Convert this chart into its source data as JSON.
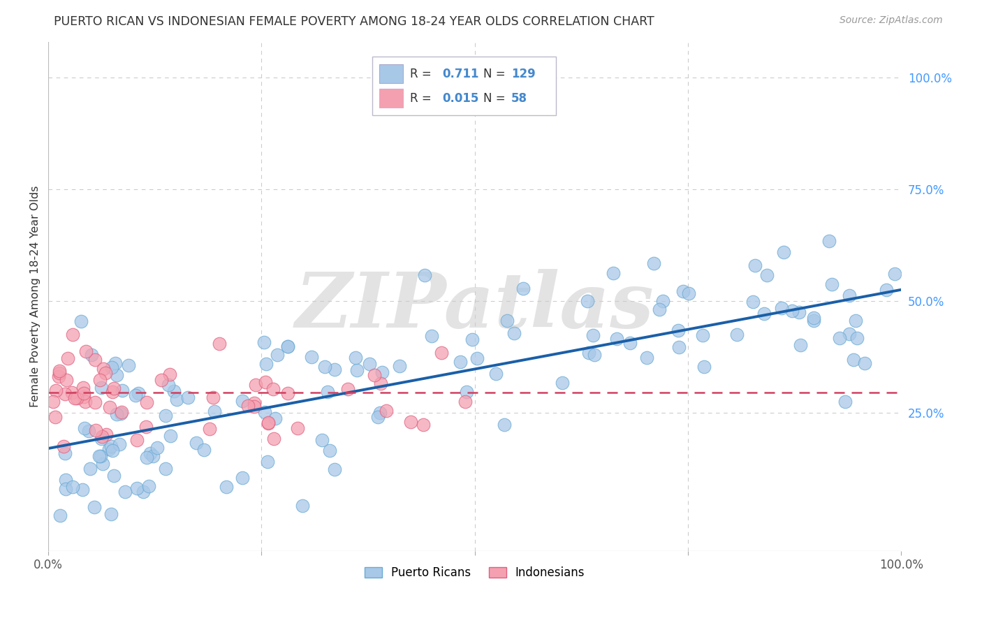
{
  "title": "PUERTO RICAN VS INDONESIAN FEMALE POVERTY AMONG 18-24 YEAR OLDS CORRELATION CHART",
  "source": "Source: ZipAtlas.com",
  "ylabel": "Female Poverty Among 18-24 Year Olds",
  "color_pr": "#a8c8e8",
  "color_pr_edge": "#6aaad4",
  "color_indo": "#f4a0b0",
  "color_indo_edge": "#e06080",
  "color_pr_line": "#1a5fa8",
  "color_indo_line": "#d04060",
  "R_pr": "0.711",
  "N_pr": "129",
  "R_indo": "0.015",
  "N_indo": "58",
  "watermark": "ZIPatlas",
  "background_color": "#ffffff",
  "grid_color": "#cccccc",
  "pr_line_y0": 0.17,
  "pr_line_y1": 0.525,
  "indo_line_y": 0.295,
  "xlim": [
    0.0,
    1.0
  ],
  "ylim": [
    -0.06,
    1.08
  ],
  "ytick_vals": [
    0.25,
    0.5,
    0.75,
    1.0
  ],
  "ytick_labels": [
    "25.0%",
    "50.0%",
    "75.0%",
    "100.0%"
  ],
  "xtick_labels_left": "0.0%",
  "xtick_labels_right": "100.0%",
  "legend_box_color": "#e8e8f0",
  "legend_text_color": "#333333",
  "legend_val_color": "#4488cc",
  "title_color": "#333333",
  "source_color": "#999999",
  "ylabel_color": "#333333",
  "right_tick_color": "#4499ff"
}
